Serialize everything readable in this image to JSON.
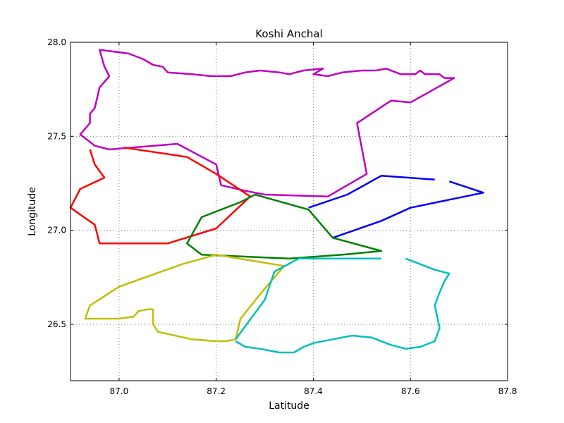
{
  "chart_data": {
    "type": "line",
    "title": "Koshi Anchal",
    "xlabel": "Latitude",
    "ylabel": "Longitude",
    "xlim": [
      86.9,
      87.8
    ],
    "ylim": [
      26.2,
      28.0
    ],
    "xticks": [
      "87.0",
      "87.2",
      "87.4",
      "87.6",
      "87.8"
    ],
    "yticks": [
      "26.5",
      "27.0",
      "27.5",
      "28.0"
    ],
    "xtick_values": [
      87.0,
      87.2,
      87.4,
      87.6,
      87.8
    ],
    "ytick_values": [
      26.5,
      27.0,
      27.5,
      28.0
    ],
    "grid": true,
    "series": [
      {
        "color": "#bf00bf",
        "segments": [
          [
            [
              86.98,
              27.43
            ],
            [
              87.12,
              27.46
            ],
            [
              87.2,
              27.35
            ],
            [
              87.21,
              27.24
            ],
            [
              87.26,
              27.21
            ],
            [
              87.3,
              27.19
            ],
            [
              87.43,
              27.18
            ],
            [
              87.51,
              27.3
            ],
            [
              87.49,
              27.57
            ],
            [
              87.56,
              27.69
            ],
            [
              87.6,
              27.68
            ],
            [
              87.69,
              27.81
            ],
            [
              87.67,
              27.81
            ],
            [
              87.66,
              27.83
            ],
            [
              87.63,
              27.83
            ],
            [
              87.62,
              27.85
            ],
            [
              87.61,
              27.83
            ],
            [
              87.58,
              27.83
            ],
            [
              87.55,
              27.86
            ],
            [
              87.53,
              27.85
            ],
            [
              87.5,
              27.85
            ],
            [
              87.46,
              27.84
            ],
            [
              87.43,
              27.82
            ],
            [
              87.4,
              27.83
            ],
            [
              87.42,
              27.86
            ],
            [
              87.38,
              27.85
            ],
            [
              87.35,
              27.83
            ],
            [
              87.33,
              27.84
            ],
            [
              87.29,
              27.85
            ],
            [
              87.26,
              27.84
            ],
            [
              87.23,
              27.82
            ],
            [
              87.19,
              27.82
            ],
            [
              87.15,
              27.83
            ],
            [
              87.1,
              27.84
            ],
            [
              87.09,
              27.87
            ],
            [
              87.07,
              27.88
            ],
            [
              87.05,
              27.91
            ],
            [
              87.02,
              27.94
            ],
            [
              86.99,
              27.95
            ],
            [
              86.96,
              27.96
            ],
            [
              86.97,
              27.87
            ],
            [
              86.98,
              27.82
            ],
            [
              86.96,
              27.76
            ],
            [
              86.95,
              27.65
            ],
            [
              86.94,
              27.62
            ],
            [
              86.94,
              27.57
            ],
            [
              86.93,
              27.54
            ],
            [
              86.92,
              27.51
            ],
            [
              86.94,
              27.47
            ],
            [
              86.95,
              27.45
            ],
            [
              86.98,
              27.43
            ]
          ]
        ]
      },
      {
        "color": "#ff0000",
        "segments": [
          [
            [
              87.01,
              27.44
            ],
            [
              87.14,
              27.39
            ],
            [
              87.2,
              27.3
            ],
            [
              87.27,
              27.18
            ],
            [
              87.2,
              27.01
            ],
            [
              87.1,
              26.93
            ],
            [
              86.96,
              26.93
            ],
            [
              86.95,
              27.03
            ],
            [
              86.9,
              27.12
            ],
            [
              86.92,
              27.22
            ],
            [
              86.97,
              27.28
            ],
            [
              86.95,
              27.35
            ],
            [
              86.94,
              27.43
            ]
          ]
        ]
      },
      {
        "color": "#0000ff",
        "segments": [
          [
            [
              87.39,
              27.12
            ],
            [
              87.47,
              27.19
            ],
            [
              87.54,
              27.29
            ],
            [
              87.65,
              27.27
            ]
          ],
          [
            [
              87.68,
              27.26
            ],
            [
              87.75,
              27.2
            ],
            [
              87.6,
              27.12
            ],
            [
              87.54,
              27.05
            ],
            [
              87.44,
              26.96
            ]
          ]
        ]
      },
      {
        "color": "#008000",
        "segments": [
          [
            [
              87.25,
              27.15
            ],
            [
              87.28,
              27.19
            ],
            [
              87.39,
              27.11
            ],
            [
              87.44,
              26.96
            ],
            [
              87.54,
              26.89
            ],
            [
              87.46,
              26.87
            ],
            [
              87.35,
              26.85
            ],
            [
              87.17,
              26.87
            ],
            [
              87.14,
              26.93
            ],
            [
              87.17,
              27.07
            ],
            [
              87.25,
              27.15
            ]
          ]
        ]
      },
      {
        "color": "#bfbf00",
        "segments": [
          [
            [
              87.2,
              26.87
            ],
            [
              87.13,
              26.82
            ],
            [
              87.0,
              26.7
            ],
            [
              86.94,
              26.6
            ],
            [
              86.93,
              26.53
            ],
            [
              86.96,
              26.53
            ],
            [
              87.0,
              26.53
            ],
            [
              87.03,
              26.54
            ],
            [
              87.04,
              26.57
            ],
            [
              87.06,
              26.58
            ],
            [
              87.07,
              26.58
            ],
            [
              87.07,
              26.5
            ],
            [
              87.08,
              26.46
            ],
            [
              87.15,
              26.42
            ],
            [
              87.2,
              26.41
            ],
            [
              87.22,
              26.41
            ],
            [
              87.24,
              26.42
            ],
            [
              87.25,
              26.53
            ],
            [
              87.3,
              26.69
            ],
            [
              87.34,
              26.81
            ],
            [
              87.2,
              26.87
            ]
          ]
        ]
      },
      {
        "color": "#00bfbf",
        "segments": [
          [
            [
              87.54,
              26.85
            ],
            [
              87.43,
              26.85
            ],
            [
              87.37,
              26.85
            ],
            [
              87.32,
              26.78
            ],
            [
              87.3,
              26.63
            ],
            [
              87.24,
              26.42
            ]
          ],
          [
            [
              87.24,
              26.41
            ],
            [
              87.26,
              26.38
            ],
            [
              87.29,
              26.37
            ],
            [
              87.33,
              26.35
            ],
            [
              87.36,
              26.35
            ],
            [
              87.38,
              26.38
            ],
            [
              87.4,
              26.4
            ],
            [
              87.44,
              26.42
            ],
            [
              87.48,
              26.44
            ],
            [
              87.52,
              26.43
            ],
            [
              87.56,
              26.39
            ],
            [
              87.59,
              26.37
            ],
            [
              87.62,
              26.38
            ],
            [
              87.65,
              26.41
            ],
            [
              87.66,
              26.48
            ],
            [
              87.65,
              26.6
            ],
            [
              87.66,
              26.67
            ],
            [
              87.67,
              26.73
            ],
            [
              87.68,
              26.77
            ],
            [
              87.65,
              26.79
            ],
            [
              87.63,
              26.81
            ],
            [
              87.59,
              26.85
            ]
          ]
        ]
      }
    ]
  }
}
